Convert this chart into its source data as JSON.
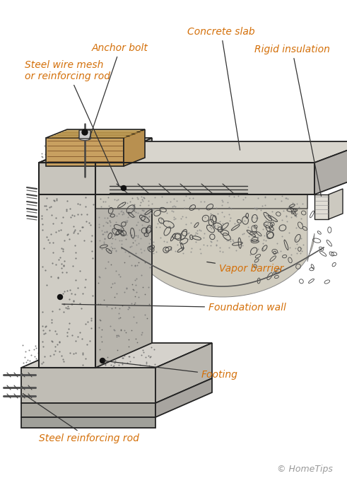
{
  "bg_color": "#ffffff",
  "line_color": "#222222",
  "text_color": "#d4700a",
  "copyright_color": "#999999",
  "copyright": "© HomeTips",
  "font_size_label": 10,
  "font_size_copyright": 9,
  "labels": {
    "anchor_bolt": "Anchor bolt",
    "concrete_slab": "Concrete slab",
    "rigid_insulation": "Rigid insulation",
    "steel_wire_mesh": "Steel wire mesh\nor reinforcing rod",
    "vapor_barrier": "Vapor barrier",
    "foundation_wall": "Foundation wall",
    "footing": "Footing",
    "steel_reinforcing_rod": "Steel reinforcing rod"
  }
}
